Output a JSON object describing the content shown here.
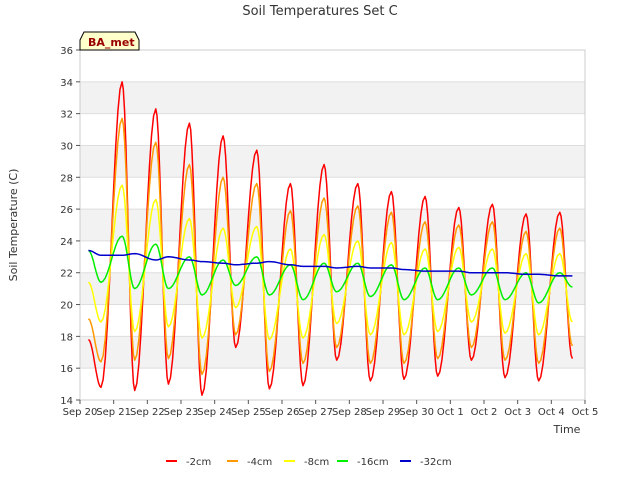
{
  "chart_data": {
    "type": "line",
    "title": "Soil Temperatures Set C",
    "xlabel": "Time",
    "ylabel": "Soil Temperature (C)",
    "ylim": [
      14,
      36
    ],
    "xlim": [
      "2023-09-20",
      "2023-10-05"
    ],
    "yticks": [
      14,
      16,
      18,
      20,
      22,
      24,
      26,
      28,
      30,
      32,
      34,
      36
    ],
    "xtick_labels": [
      "Sep 20",
      "Sep 21",
      "Sep 22",
      "Sep 23",
      "Sep 24",
      "Sep 25",
      "Sep 26",
      "Sep 27",
      "Sep 28",
      "Sep 29",
      "Sep 30",
      "Oct 1",
      "Oct 2",
      "Oct 3",
      "Oct 4",
      "Oct 5"
    ],
    "grid": true,
    "legend_position": "bottom",
    "annotation": "BA_met",
    "x": [
      "Sep 20 06:00",
      "Sep 20 15:00",
      "Sep 21 06:00",
      "Sep 21 15:00",
      "Sep 22 06:00",
      "Sep 22 15:00",
      "Sep 23 06:00",
      "Sep 23 15:00",
      "Sep 24 06:00",
      "Sep 24 15:00",
      "Sep 25 06:00",
      "Sep 25 15:00",
      "Sep 26 06:00",
      "Sep 26 15:00",
      "Sep 27 06:00",
      "Sep 27 15:00",
      "Sep 28 06:00",
      "Sep 28 15:00",
      "Sep 29 06:00",
      "Sep 29 15:00",
      "Sep 30 06:00",
      "Sep 30 15:00",
      "Oct 1 06:00",
      "Oct 1 15:00",
      "Oct 2 06:00",
      "Oct 2 15:00",
      "Oct 3 06:00",
      "Oct 3 15:00",
      "Oct 4 06:00",
      "Oct 4 15:00"
    ],
    "series": [
      {
        "name": "-2cm",
        "color": "#ff0000",
        "values": [
          17.8,
          14.8,
          34.0,
          14.6,
          32.3,
          15.0,
          31.4,
          14.3,
          30.6,
          17.3,
          29.7,
          14.7,
          27.6,
          14.9,
          28.8,
          16.5,
          27.6,
          15.2,
          27.1,
          15.3,
          26.8,
          15.5,
          26.1,
          16.5,
          26.3,
          15.4,
          25.7,
          15.2,
          25.8,
          16.6
        ]
      },
      {
        "name": "-4cm",
        "color": "#ff9900",
        "values": [
          19.1,
          16.4,
          31.7,
          16.5,
          30.2,
          16.6,
          28.8,
          15.6,
          28.0,
          18.1,
          27.6,
          15.8,
          25.9,
          16.3,
          26.7,
          17.3,
          26.2,
          16.3,
          25.8,
          16.3,
          25.2,
          16.6,
          25.0,
          17.3,
          25.2,
          16.5,
          24.6,
          16.3,
          24.8,
          17.4
        ]
      },
      {
        "name": "-8cm",
        "color": "#ffff00",
        "values": [
          21.4,
          18.9,
          27.5,
          18.3,
          26.6,
          18.6,
          25.4,
          17.9,
          24.8,
          19.8,
          24.9,
          17.8,
          23.5,
          17.9,
          24.4,
          18.8,
          24.0,
          18.1,
          23.9,
          18.1,
          23.5,
          18.3,
          23.6,
          18.9,
          23.5,
          18.2,
          23.2,
          18.1,
          23.2,
          18.9
        ]
      },
      {
        "name": "-16cm",
        "color": "#00ee00",
        "values": [
          23.4,
          21.4,
          24.3,
          21.0,
          23.8,
          21.0,
          23.0,
          20.6,
          22.8,
          21.2,
          23.0,
          20.6,
          22.5,
          20.3,
          22.6,
          20.8,
          22.6,
          20.5,
          22.5,
          20.3,
          22.3,
          20.3,
          22.3,
          20.6,
          22.3,
          20.3,
          22.0,
          20.1,
          22.0,
          21.1
        ]
      },
      {
        "name": "-32cm",
        "color": "#0000cc",
        "values": [
          23.4,
          23.1,
          23.1,
          23.2,
          22.8,
          23.0,
          22.8,
          22.7,
          22.6,
          22.5,
          22.6,
          22.7,
          22.5,
          22.4,
          22.4,
          22.3,
          22.4,
          22.3,
          22.3,
          22.2,
          22.1,
          22.1,
          22.1,
          22.0,
          22.0,
          22.0,
          21.9,
          21.9,
          21.8,
          21.8
        ]
      }
    ]
  }
}
